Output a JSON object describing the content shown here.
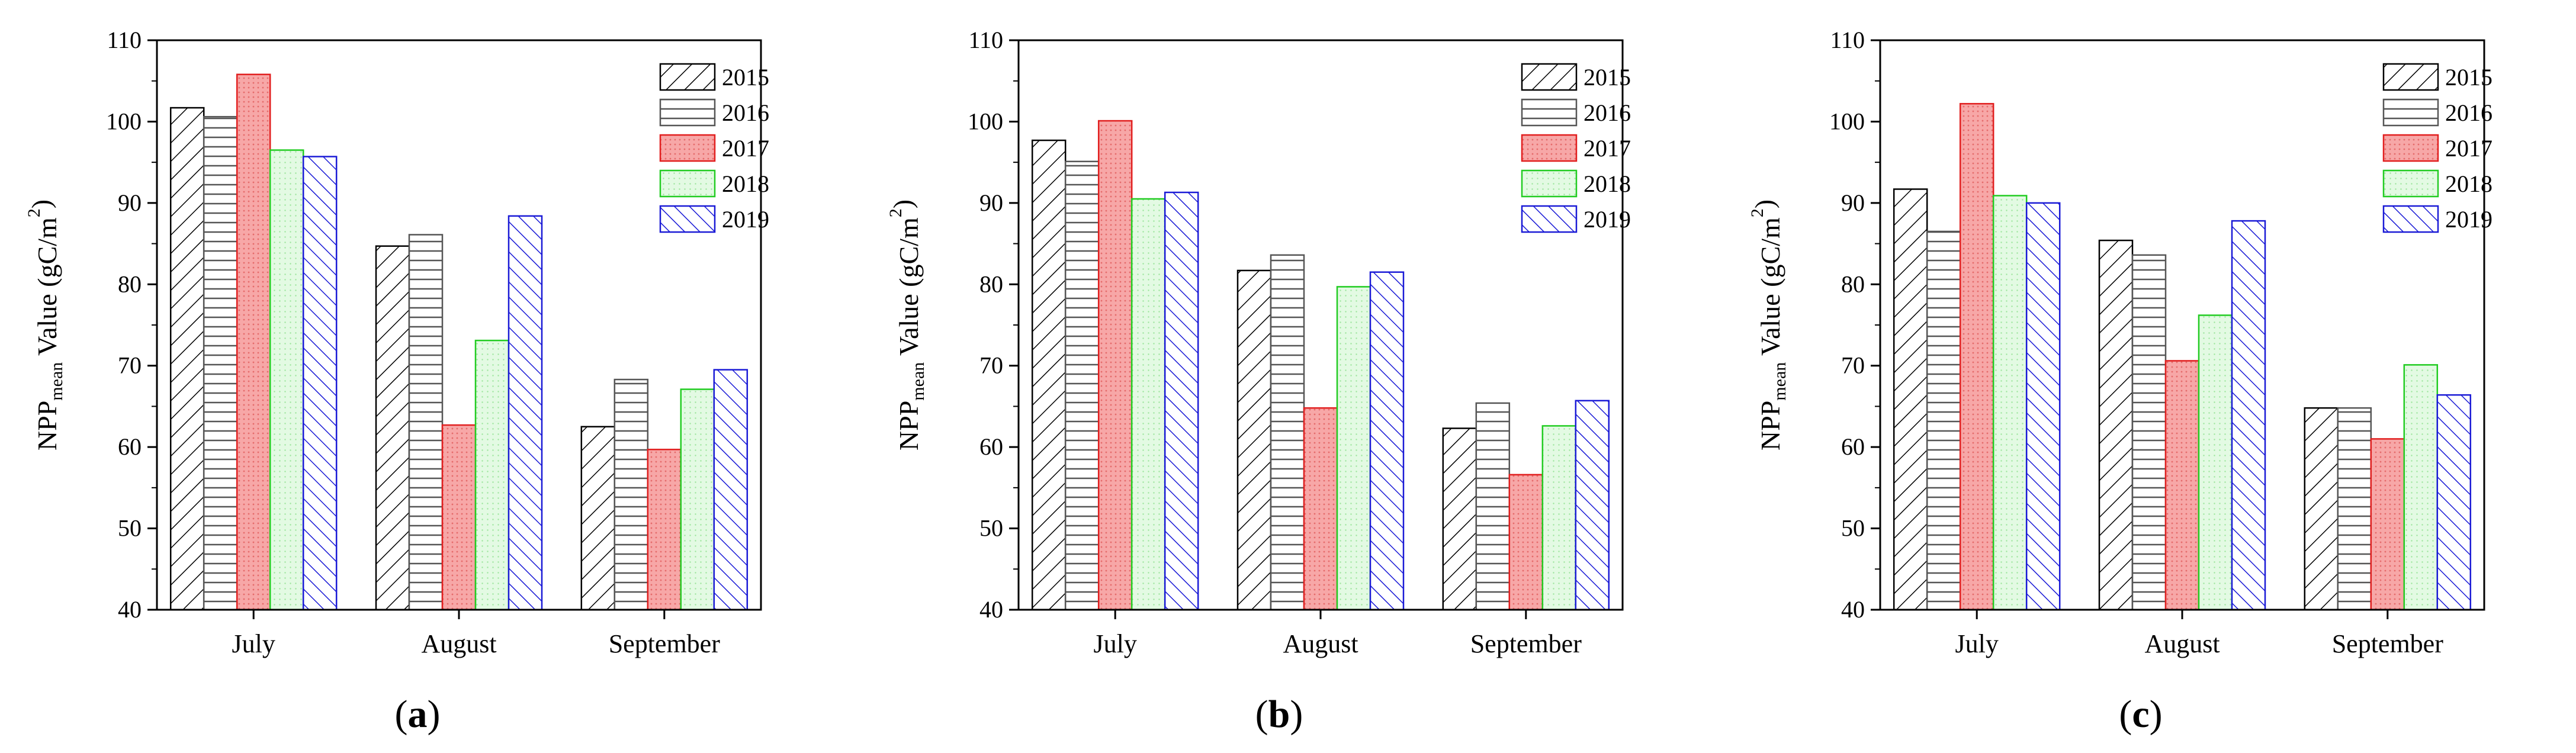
{
  "colors": {
    "2015": "#000000",
    "2016": "#555555",
    "2017": "#e11f1f",
    "2018": "#22cc22",
    "2019": "#1a1ad6",
    "fill_2017": "#f7a7a7",
    "fill_2018": "#d6f7d6"
  },
  "chart_data": [
    {
      "type": "bar",
      "panel": "a",
      "ylabel": "NPP_mean Value (gC/m²)",
      "ylim": [
        40,
        110
      ],
      "yticks": [
        40,
        50,
        60,
        70,
        80,
        90,
        100,
        110
      ],
      "categories": [
        "July",
        "August",
        "September"
      ],
      "series": [
        {
          "name": "2015",
          "values": [
            101.7,
            84.7,
            62.5
          ]
        },
        {
          "name": "2016",
          "values": [
            100.6,
            86.1,
            68.3
          ]
        },
        {
          "name": "2017",
          "values": [
            105.8,
            62.7,
            59.7
          ]
        },
        {
          "name": "2018",
          "values": [
            96.5,
            73.1,
            67.1
          ]
        },
        {
          "name": "2019",
          "values": [
            95.7,
            88.4,
            69.5
          ]
        }
      ]
    },
    {
      "type": "bar",
      "panel": "b",
      "ylabel": "NPP_mean Value (gC/m²)",
      "ylim": [
        40,
        110
      ],
      "yticks": [
        40,
        50,
        60,
        70,
        80,
        90,
        100,
        110
      ],
      "categories": [
        "July",
        "August",
        "September"
      ],
      "series": [
        {
          "name": "2015",
          "values": [
            97.7,
            81.7,
            62.3
          ]
        },
        {
          "name": "2016",
          "values": [
            95.1,
            83.6,
            65.4
          ]
        },
        {
          "name": "2017",
          "values": [
            100.1,
            64.8,
            56.6
          ]
        },
        {
          "name": "2018",
          "values": [
            90.5,
            79.7,
            62.6
          ]
        },
        {
          "name": "2019",
          "values": [
            91.3,
            81.5,
            65.7
          ]
        }
      ]
    },
    {
      "type": "bar",
      "panel": "c",
      "ylabel": "NPP_mean Value (gC/m²)",
      "ylim": [
        40,
        110
      ],
      "yticks": [
        40,
        50,
        60,
        70,
        80,
        90,
        100,
        110
      ],
      "categories": [
        "July",
        "August",
        "September"
      ],
      "series": [
        {
          "name": "2015",
          "values": [
            91.7,
            85.4,
            64.8
          ]
        },
        {
          "name": "2016",
          "values": [
            86.5,
            83.6,
            64.8
          ]
        },
        {
          "name": "2017",
          "values": [
            102.2,
            70.6,
            61.0
          ]
        },
        {
          "name": "2018",
          "values": [
            90.9,
            76.2,
            70.1
          ]
        },
        {
          "name": "2019",
          "values": [
            90.0,
            87.8,
            66.4
          ]
        }
      ]
    }
  ],
  "labels": {
    "ylabel_main": "NPP",
    "ylabel_sub": "mean",
    "ylabel_rest": " Value (gC/m",
    "ylabel_sup": "2",
    "ylabel_close": ")",
    "panels": [
      "a",
      "b",
      "c"
    ],
    "panel_open": "(",
    "panel_close": ")"
  }
}
